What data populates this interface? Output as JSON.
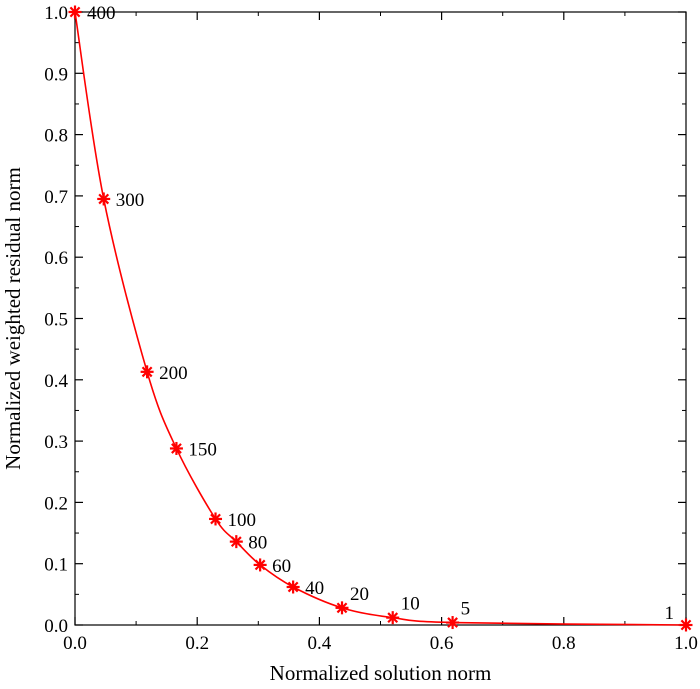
{
  "chart_data": {
    "type": "line",
    "xlabel": "Normalized solution norm",
    "ylabel": "Normalized weighted residual norm",
    "xlim": [
      0,
      1
    ],
    "ylim": [
      0,
      1
    ],
    "grid": false,
    "xticks": [
      "0.0",
      "0.2",
      "0.4",
      "0.6",
      "0.8",
      "1.0"
    ],
    "yticks": [
      "0.0",
      "0.1",
      "0.2",
      "0.3",
      "0.4",
      "0.5",
      "0.6",
      "0.7",
      "0.8",
      "0.9",
      "1.0"
    ],
    "series": [
      {
        "color": "#ff0000",
        "marker": "asterisk",
        "points": [
          {
            "x": 0.0,
            "y": 1.0,
            "label": "400"
          },
          {
            "x": 0.047,
            "y": 0.695,
            "label": "300"
          },
          {
            "x": 0.118,
            "y": 0.413,
            "label": "200"
          },
          {
            "x": 0.166,
            "y": 0.288,
            "label": "150"
          },
          {
            "x": 0.23,
            "y": 0.173,
            "label": "100"
          },
          {
            "x": 0.264,
            "y": 0.136,
            "label": "80"
          },
          {
            "x": 0.303,
            "y": 0.098,
            "label": "60"
          },
          {
            "x": 0.357,
            "y": 0.062,
            "label": "40"
          },
          {
            "x": 0.437,
            "y": 0.028,
            "label": "20"
          },
          {
            "x": 0.52,
            "y": 0.012,
            "label": "10"
          },
          {
            "x": 0.618,
            "y": 0.004,
            "label": "5"
          },
          {
            "x": 1.0,
            "y": 0.0,
            "label": "1"
          }
        ]
      }
    ]
  }
}
